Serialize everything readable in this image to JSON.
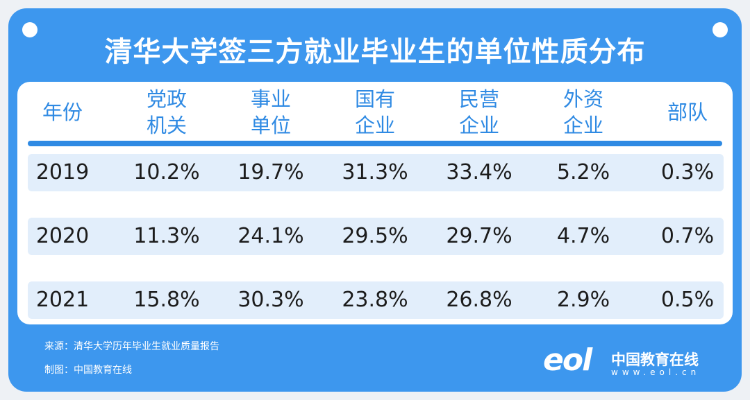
{
  "header": {
    "title": "清华大学签三方就业毕业生的单位性质分布"
  },
  "table": {
    "columns": [
      [
        "年份"
      ],
      [
        "党政",
        "机关"
      ],
      [
        "事业",
        "单位"
      ],
      [
        "国有",
        "企业"
      ],
      [
        "民营",
        "企业"
      ],
      [
        "外资",
        "企业"
      ],
      [
        "部队"
      ]
    ],
    "rows": [
      [
        "2019",
        "10.2%",
        "19.7%",
        "31.3%",
        "33.4%",
        "5.2%",
        "0.3%"
      ],
      [
        "2020",
        "11.3%",
        "24.1%",
        "29.5%",
        "29.7%",
        "4.7%",
        "0.7%"
      ],
      [
        "2021",
        "15.8%",
        "30.3%",
        "23.8%",
        "26.8%",
        "2.9%",
        "0.5%"
      ]
    ]
  },
  "footer": {
    "source": "来源：清华大学历年毕业生就业质量报告",
    "credit": "制图：中国教育在线"
  },
  "logo": {
    "mark": "eol",
    "name": "中国教育在线",
    "url": "www.eol.cn"
  }
}
